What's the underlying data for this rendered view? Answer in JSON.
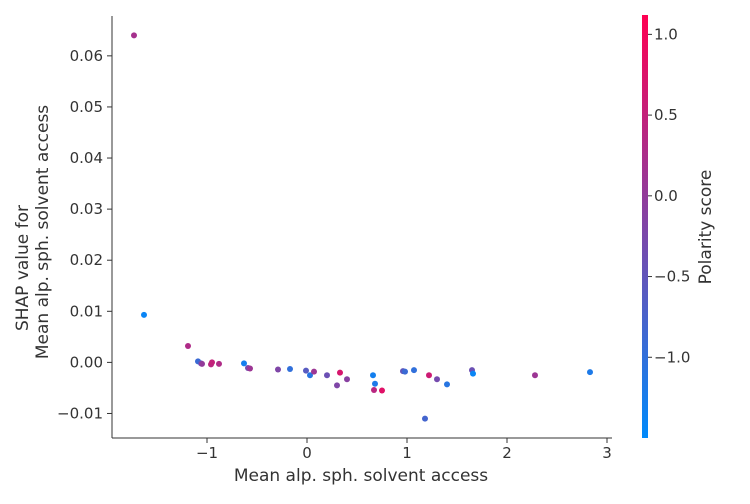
{
  "chart_data": {
    "type": "scatter",
    "title": "",
    "xlabel": "Mean alp. sph. solvent access",
    "ylabel_lines": [
      "SHAP value for",
      "Mean alp. sph. solvent access"
    ],
    "xlim": [
      -1.95,
      3.05
    ],
    "ylim": [
      -0.0148,
      0.0678
    ],
    "xticks": [
      {
        "value": -1,
        "label": "−1"
      },
      {
        "value": 0,
        "label": "0"
      },
      {
        "value": 1,
        "label": "1"
      },
      {
        "value": 2,
        "label": "2"
      },
      {
        "value": 3,
        "label": "3"
      }
    ],
    "yticks": [
      {
        "value": 0.06,
        "label": "0.06"
      },
      {
        "value": 0.05,
        "label": "0.05"
      },
      {
        "value": 0.04,
        "label": "0.04"
      },
      {
        "value": 0.03,
        "label": "0.03"
      },
      {
        "value": 0.02,
        "label": "0.02"
      },
      {
        "value": 0.01,
        "label": "0.01"
      },
      {
        "value": 0.0,
        "label": "0.00"
      },
      {
        "value": -0.01,
        "label": "−0.01"
      }
    ],
    "colorbar": {
      "label": "Polarity score",
      "range": [
        -1.5,
        1.12
      ],
      "ticks": [
        {
          "value": 1.0,
          "label": "1.0"
        },
        {
          "value": 0.5,
          "label": "0.5"
        },
        {
          "value": 0.0,
          "label": "0.0"
        },
        {
          "value": -0.5,
          "label": "−0.5"
        },
        {
          "value": -1.0,
          "label": "−1.0"
        }
      ],
      "colors": [
        "#008afb",
        "#ff0052"
      ]
    },
    "points": [
      {
        "x": -1.73,
        "y": 0.064,
        "c": 0.2
      },
      {
        "x": -1.63,
        "y": 0.0093,
        "c": -1.4
      },
      {
        "x": -1.19,
        "y": 0.0032,
        "c": 0.3
      },
      {
        "x": -1.09,
        "y": 0.0002,
        "c": -0.9
      },
      {
        "x": -1.06,
        "y": -0.0002,
        "c": -0.6
      },
      {
        "x": -1.05,
        "y": -0.0003,
        "c": 0.0
      },
      {
        "x": -0.96,
        "y": -0.0004,
        "c": 0.4
      },
      {
        "x": -0.95,
        "y": 0.0,
        "c": 0.5
      },
      {
        "x": -0.88,
        "y": -0.0003,
        "c": 0.3
      },
      {
        "x": -0.63,
        "y": -0.0002,
        "c": -1.3
      },
      {
        "x": -0.59,
        "y": -0.0011,
        "c": -0.3
      },
      {
        "x": -0.57,
        "y": -0.0012,
        "c": 0.1
      },
      {
        "x": -0.29,
        "y": -0.0014,
        "c": -0.2
      },
      {
        "x": -0.17,
        "y": -0.0013,
        "c": -1.0
      },
      {
        "x": -0.01,
        "y": -0.0016,
        "c": -0.6
      },
      {
        "x": 0.03,
        "y": -0.0025,
        "c": -1.1
      },
      {
        "x": 0.07,
        "y": -0.0018,
        "c": 0.1
      },
      {
        "x": 0.2,
        "y": -0.0025,
        "c": -0.4
      },
      {
        "x": 0.3,
        "y": -0.0045,
        "c": -0.2
      },
      {
        "x": 0.33,
        "y": -0.002,
        "c": 0.7
      },
      {
        "x": 0.4,
        "y": -0.0033,
        "c": -0.1
      },
      {
        "x": 0.66,
        "y": -0.0025,
        "c": -1.3
      },
      {
        "x": 0.67,
        "y": -0.0054,
        "c": 0.4
      },
      {
        "x": 0.68,
        "y": -0.0042,
        "c": -1.2
      },
      {
        "x": 0.75,
        "y": -0.0055,
        "c": 0.8
      },
      {
        "x": 0.96,
        "y": -0.0017,
        "c": -0.5
      },
      {
        "x": 0.98,
        "y": -0.0018,
        "c": -0.9
      },
      {
        "x": 1.07,
        "y": -0.0015,
        "c": -1.0
      },
      {
        "x": 1.18,
        "y": -0.011,
        "c": -0.8
      },
      {
        "x": 1.22,
        "y": -0.0025,
        "c": 0.6
      },
      {
        "x": 1.3,
        "y": -0.0033,
        "c": -0.3
      },
      {
        "x": 1.4,
        "y": -0.0043,
        "c": -1.1
      },
      {
        "x": 1.65,
        "y": -0.0015,
        "c": -0.4
      },
      {
        "x": 1.66,
        "y": -0.0022,
        "c": -1.4
      },
      {
        "x": 2.28,
        "y": -0.0025,
        "c": 0.1
      },
      {
        "x": 2.83,
        "y": -0.0019,
        "c": -1.2
      }
    ]
  }
}
